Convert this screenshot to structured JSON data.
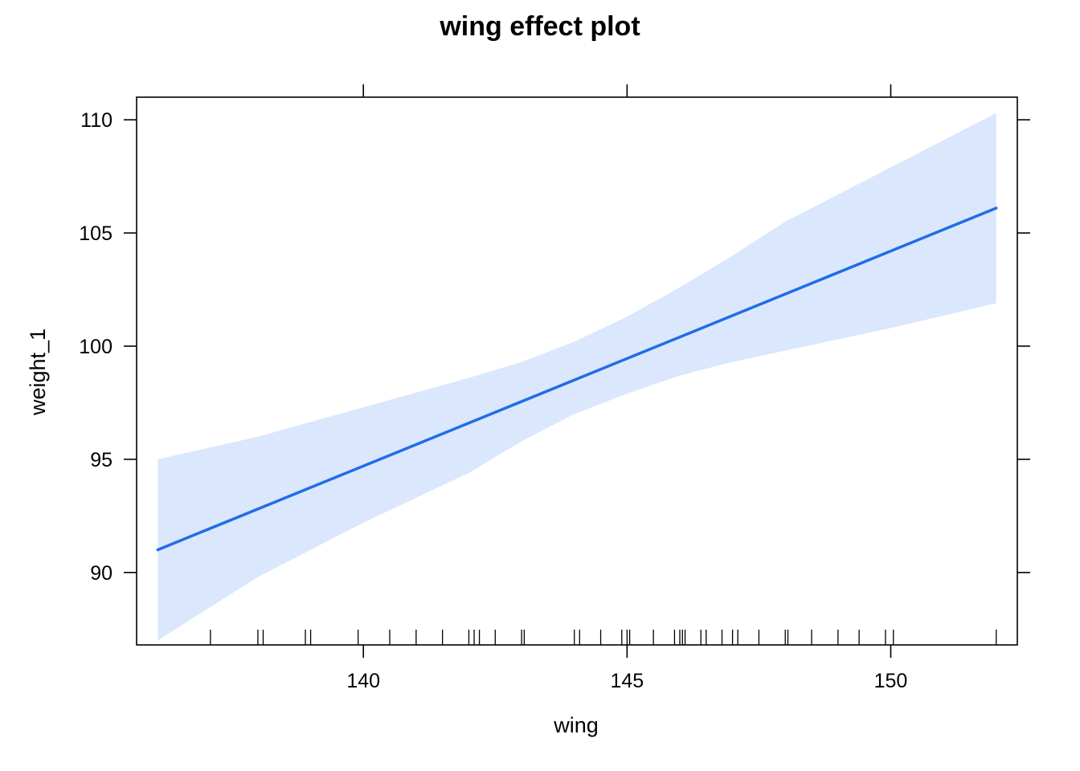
{
  "chart_data": {
    "type": "line",
    "title": "wing effect plot",
    "xlabel": "wing",
    "ylabel": "weight_1",
    "xlim": [
      135.7,
      152.4
    ],
    "ylim": [
      86.8,
      111.0
    ],
    "x_ticks": [
      140,
      145,
      150
    ],
    "y_ticks": [
      90,
      95,
      100,
      105,
      110
    ],
    "grid": false,
    "colors": {
      "line": "#1f6de8",
      "band": "#dbe7fd",
      "axis": "#000000"
    },
    "series": [
      {
        "x": [
          136.1,
          152.0
        ],
        "values": [
          91.0,
          106.1
        ]
      }
    ],
    "confidence_band": {
      "x": [
        136.1,
        138,
        140,
        142,
        143,
        144,
        145,
        146,
        147,
        148,
        150,
        152.0
      ],
      "lower": [
        87.0,
        89.8,
        92.2,
        94.4,
        95.8,
        97.0,
        97.9,
        98.7,
        99.3,
        99.8,
        100.8,
        101.9
      ],
      "upper": [
        95.0,
        96.0,
        97.3,
        98.6,
        99.3,
        100.2,
        101.3,
        102.6,
        104.0,
        105.5,
        107.9,
        110.3
      ]
    },
    "rug": [
      137.1,
      138.0,
      138.1,
      138.9,
      139.0,
      139.9,
      140.5,
      141.0,
      141.5,
      142.0,
      142.1,
      142.2,
      142.5,
      143.0,
      143.05,
      144.0,
      144.1,
      144.5,
      144.9,
      145.0,
      145.05,
      145.5,
      145.9,
      146.0,
      146.05,
      146.1,
      146.4,
      146.5,
      146.8,
      147.0,
      147.1,
      147.5,
      148.0,
      148.05,
      148.5,
      149.0,
      149.4,
      149.9,
      150.05,
      152.0
    ]
  }
}
